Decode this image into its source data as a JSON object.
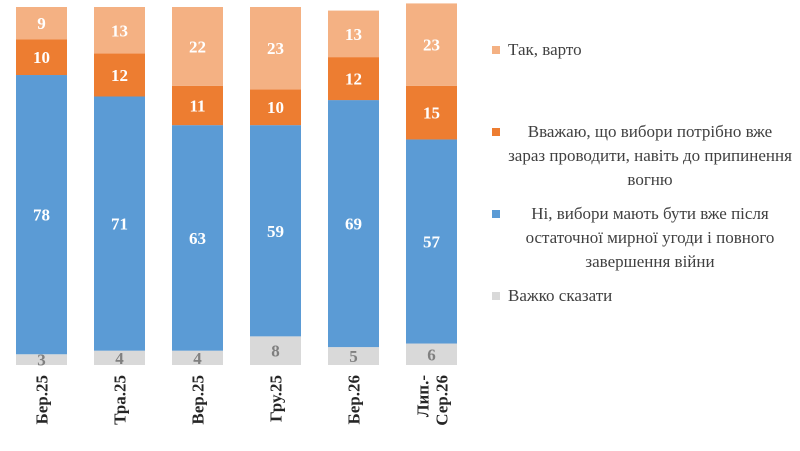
{
  "chart_data": {
    "type": "bar",
    "stacked": true,
    "categories": [
      "Бер.25",
      "Тра.25",
      "Вер.25",
      "Гру.25",
      "Бер.26",
      "Лип.-Сер.26"
    ],
    "series": [
      {
        "name": "Важко сказати",
        "color": "#d9d9d9",
        "values": [
          3,
          4,
          4,
          8,
          5,
          6
        ]
      },
      {
        "name": "Ні, вибори мають бути вже після остаточної мирної угоди і повного завершення війни",
        "color": "#5b9bd5",
        "values": [
          78,
          71,
          63,
          59,
          69,
          57
        ]
      },
      {
        "name": "Вважаю, що вибори потрібно вже зараз проводити, навіть до припинення вогню",
        "color": "#ed7d31",
        "values": [
          10,
          12,
          11,
          10,
          12,
          15
        ]
      },
      {
        "name": "Так, варто",
        "color": "#f4b183",
        "values": [
          9,
          13,
          22,
          23,
          13,
          23
        ]
      }
    ],
    "ylim": [
      0,
      100
    ],
    "legend_position": "right",
    "legend_order": [
      3,
      2,
      1,
      0
    ],
    "grid": false
  }
}
